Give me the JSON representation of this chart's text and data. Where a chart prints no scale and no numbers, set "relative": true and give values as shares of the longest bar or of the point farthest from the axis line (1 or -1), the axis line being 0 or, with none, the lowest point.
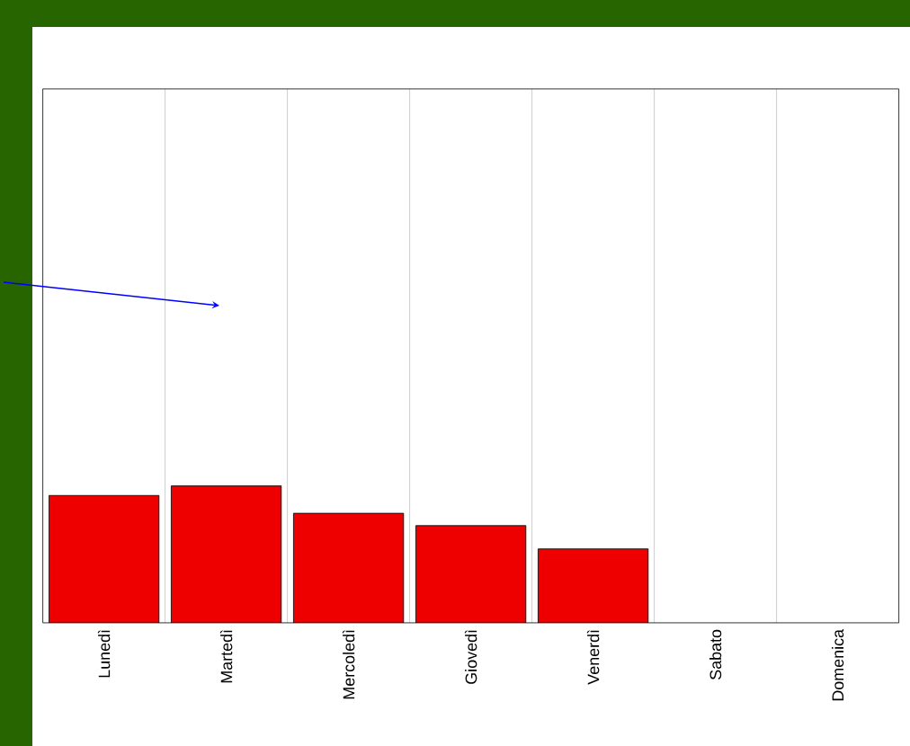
{
  "chart_data": {
    "type": "bar",
    "relative": true,
    "categories": [
      "Lunedì",
      "Martedì",
      "Mercoledì",
      "Giovedì",
      "Venerdì",
      "Sabato",
      "Domenica"
    ],
    "values": [
      0.93,
      1,
      0.8,
      0.71,
      0.54,
      null,
      null
    ],
    "color": "#ee0000",
    "grid": "x"
  }
}
